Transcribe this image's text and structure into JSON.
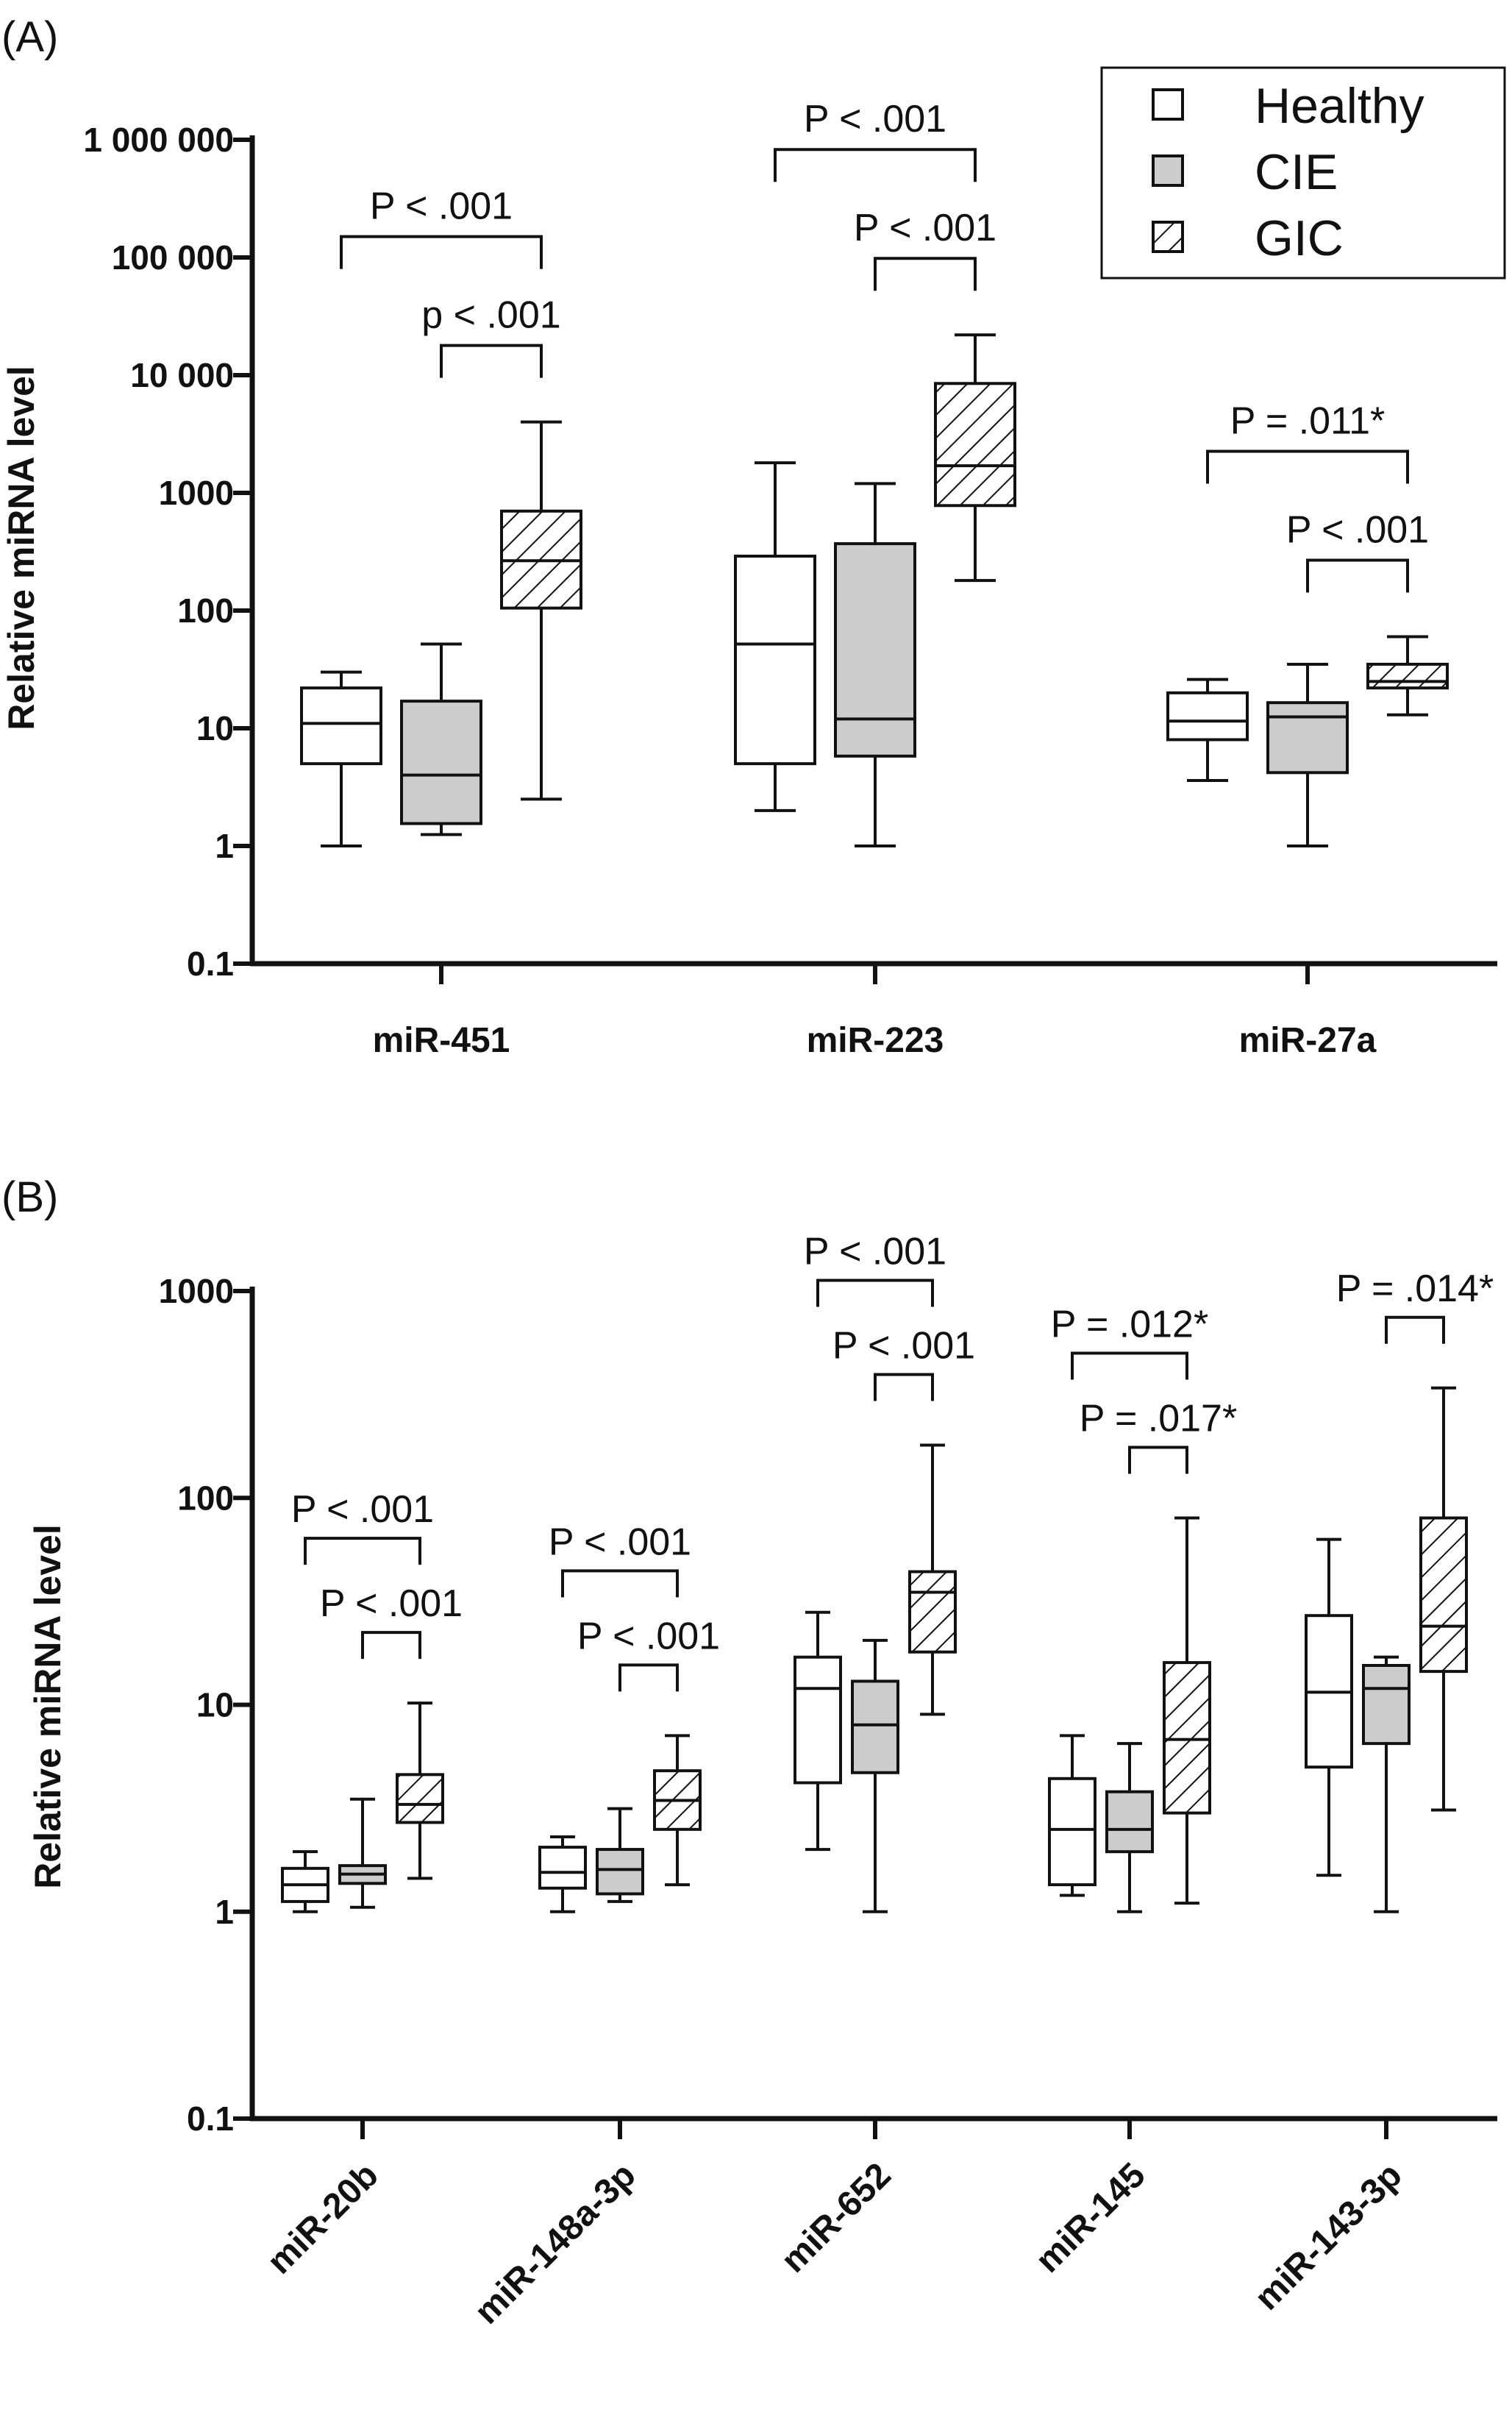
{
  "colors": {
    "healthy": "#ffffff",
    "cie": "#cccccc",
    "gic_hatch": "#111111",
    "ink": "#111111"
  },
  "legend": {
    "position": "top-right",
    "items": [
      {
        "label": "Healthy",
        "fill": "white"
      },
      {
        "label": "CIE",
        "fill": "gray"
      },
      {
        "label": "GIC",
        "fill": "hatched"
      }
    ]
  },
  "chart_data": [
    {
      "type": "box",
      "panel_label": "(A)",
      "ylabel": "Relative miRNA level",
      "yscale": "log",
      "ylim": [
        0.1,
        1000000
      ],
      "yticks": [
        0.1,
        1,
        10,
        100,
        1000,
        10000,
        100000,
        1000000
      ],
      "yticklabels": [
        "0.1",
        "1",
        "10",
        "100",
        "1000",
        "10 000",
        "100 000",
        "1 000 000"
      ],
      "categories": [
        "miR-451",
        "miR-223",
        "miR-27a"
      ],
      "series": [
        {
          "name": "Healthy",
          "boxes": [
            {
              "min": 1,
              "q1": 5,
              "median": 11,
              "q3": 22,
              "max": 30
            },
            {
              "min": 2,
              "q1": 5,
              "median": 52,
              "q3": 290,
              "max": 1800
            },
            {
              "min": 3.6,
              "q1": 8,
              "median": 11.5,
              "q3": 20,
              "max": 26
            }
          ]
        },
        {
          "name": "CIE",
          "boxes": [
            {
              "min": 1.25,
              "q1": 1.55,
              "median": 4,
              "q3": 17,
              "max": 52
            },
            {
              "min": 1,
              "q1": 5.8,
              "median": 12,
              "q3": 370,
              "max": 1200
            },
            {
              "min": 1,
              "q1": 4.2,
              "median": 12.5,
              "q3": 16.5,
              "max": 35
            }
          ]
        },
        {
          "name": "GIC",
          "boxes": [
            {
              "min": 2.5,
              "q1": 105,
              "median": 265,
              "q3": 700,
              "max": 4000
            },
            {
              "min": 180,
              "q1": 780,
              "median": 1700,
              "q3": 8500,
              "max": 22000
            },
            {
              "min": 13,
              "q1": 22,
              "median": 25,
              "q3": 35,
              "max": 60
            }
          ]
        }
      ],
      "comparisons": [
        {
          "category": "miR-451",
          "from": "Healthy",
          "to": "GIC",
          "label": "P < .001",
          "level": 2
        },
        {
          "category": "miR-451",
          "from": "CIE",
          "to": "GIC",
          "label": "p < .001",
          "level": 1
        },
        {
          "category": "miR-223",
          "from": "Healthy",
          "to": "GIC",
          "label": "P < .001",
          "level": 2
        },
        {
          "category": "miR-223",
          "from": "CIE",
          "to": "GIC",
          "label": "P < .001",
          "level": 1
        },
        {
          "category": "miR-27a",
          "from": "Healthy",
          "to": "GIC",
          "label": "P = .011*",
          "level": 2
        },
        {
          "category": "miR-27a",
          "from": "CIE",
          "to": "GIC",
          "label": "P < .001",
          "level": 1
        }
      ]
    },
    {
      "type": "box",
      "panel_label": "(B)",
      "ylabel": "Relative miRNA level",
      "yscale": "log",
      "ylim": [
        0.1,
        1000
      ],
      "yticks": [
        0.1,
        1,
        10,
        100,
        1000
      ],
      "yticklabels": [
        "0.1",
        "1",
        "10",
        "100",
        "1000"
      ],
      "categories": [
        "miR-20b",
        "miR-148a-3p",
        "miR-652",
        "miR-145",
        "miR-143-3p"
      ],
      "series": [
        {
          "name": "Healthy",
          "boxes": [
            {
              "min": 1,
              "q1": 1.12,
              "median": 1.35,
              "q3": 1.62,
              "max": 1.95
            },
            {
              "min": 1,
              "q1": 1.3,
              "median": 1.55,
              "q3": 2.05,
              "max": 2.3
            },
            {
              "min": 2,
              "q1": 4.2,
              "median": 12,
              "q3": 17,
              "max": 28
            },
            {
              "min": 1.2,
              "q1": 1.35,
              "median": 2.5,
              "q3": 4.4,
              "max": 7.1
            },
            {
              "min": 1.5,
              "q1": 5,
              "median": 11.5,
              "q3": 27,
              "max": 63
            }
          ]
        },
        {
          "name": "CIE",
          "boxes": [
            {
              "min": 1.05,
              "q1": 1.37,
              "median": 1.52,
              "q3": 1.67,
              "max": 3.5
            },
            {
              "min": 1.12,
              "q1": 1.22,
              "median": 1.6,
              "q3": 2,
              "max": 3.15
            },
            {
              "min": 1,
              "q1": 4.7,
              "median": 8,
              "q3": 13,
              "max": 20.5
            },
            {
              "min": 1,
              "q1": 1.95,
              "median": 2.5,
              "q3": 3.8,
              "max": 6.5
            },
            {
              "min": 1,
              "q1": 6.5,
              "median": 12,
              "q3": 15.5,
              "max": 17
            }
          ]
        },
        {
          "name": "GIC",
          "boxes": [
            {
              "min": 1.45,
              "q1": 2.7,
              "median": 3.3,
              "q3": 4.6,
              "max": 10.2
            },
            {
              "min": 1.35,
              "q1": 2.5,
              "median": 3.45,
              "q3": 4.8,
              "max": 7.1
            },
            {
              "min": 9,
              "q1": 18,
              "median": 35,
              "q3": 44,
              "max": 180
            },
            {
              "min": 1.1,
              "q1": 3,
              "median": 6.8,
              "q3": 16,
              "max": 80
            },
            {
              "min": 3.1,
              "q1": 14.5,
              "median": 24,
              "q3": 80,
              "max": 340
            }
          ]
        }
      ],
      "comparisons": [
        {
          "category": "miR-20b",
          "from": "Healthy",
          "to": "GIC",
          "label": "P < .001",
          "level": 2
        },
        {
          "category": "miR-20b",
          "from": "CIE",
          "to": "GIC",
          "label": "P < .001",
          "level": 1
        },
        {
          "category": "miR-148a-3p",
          "from": "Healthy",
          "to": "GIC",
          "label": "P < .001",
          "level": 2
        },
        {
          "category": "miR-148a-3p",
          "from": "CIE",
          "to": "GIC",
          "label": "P < .001",
          "level": 1
        },
        {
          "category": "miR-652",
          "from": "Healthy",
          "to": "GIC",
          "label": "P < .001",
          "level": 2
        },
        {
          "category": "miR-652",
          "from": "CIE",
          "to": "GIC",
          "label": "P < .001",
          "level": 1
        },
        {
          "category": "miR-145",
          "from": "Healthy",
          "to": "GIC",
          "label": "P = .012*",
          "level": 2
        },
        {
          "category": "miR-145",
          "from": "CIE",
          "to": "GIC",
          "label": "P = .017*",
          "level": 1
        },
        {
          "category": "miR-143-3p",
          "from": "CIE",
          "to": "GIC",
          "label": "P = .014*",
          "level": 1
        }
      ]
    }
  ]
}
